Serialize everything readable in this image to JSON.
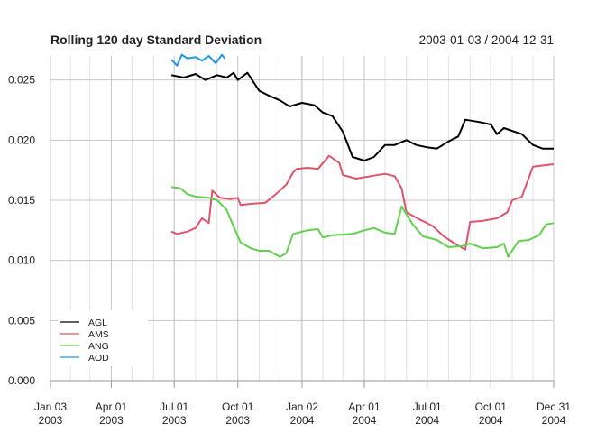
{
  "chart_data": {
    "type": "line",
    "title": "Rolling 120 day Standard Deviation",
    "date_range": "2003-01-03 / 2004-12-31",
    "x_range": [
      "2003-01-03",
      "2004-12-31"
    ],
    "ylim": [
      0,
      0.027
    ],
    "y_ticks": [
      "0.000",
      "0.005",
      "0.010",
      "0.015",
      "0.020",
      "0.025"
    ],
    "y_tick_values": [
      0,
      0.005,
      0.01,
      0.015,
      0.02,
      0.025
    ],
    "x_ticks": [
      {
        "date": "2003-01-03",
        "line1": "Jan 03",
        "line2": "2003"
      },
      {
        "date": "2003-04-01",
        "line1": "Apr 01",
        "line2": "2003"
      },
      {
        "date": "2003-07-01",
        "line1": "Jul 01",
        "line2": "2003"
      },
      {
        "date": "2003-10-01",
        "line1": "Oct 01",
        "line2": "2003"
      },
      {
        "date": "2004-01-02",
        "line1": "Jan 02",
        "line2": "2004"
      },
      {
        "date": "2004-04-01",
        "line1": "Apr 01",
        "line2": "2004"
      },
      {
        "date": "2004-07-01",
        "line1": "Jul 01",
        "line2": "2004"
      },
      {
        "date": "2004-10-01",
        "line1": "Oct 01",
        "line2": "2004"
      },
      {
        "date": "2004-12-31",
        "line1": "Dec 31",
        "line2": "2004"
      }
    ],
    "grid": true,
    "legend_position": "bottom-left",
    "series": [
      {
        "name": "AGL",
        "color": "#000000",
        "points": [
          [
            "2003-06-27",
            0.0254
          ],
          [
            "2003-07-15",
            0.0252
          ],
          [
            "2003-08-01",
            0.0255
          ],
          [
            "2003-08-15",
            0.025
          ],
          [
            "2003-09-01",
            0.0254
          ],
          [
            "2003-09-15",
            0.0252
          ],
          [
            "2003-09-25",
            0.0256
          ],
          [
            "2003-10-01",
            0.025
          ],
          [
            "2003-10-15",
            0.0256
          ],
          [
            "2003-11-01",
            0.0241
          ],
          [
            "2003-11-15",
            0.0237
          ],
          [
            "2003-12-01",
            0.0233
          ],
          [
            "2003-12-15",
            0.0228
          ],
          [
            "2004-01-02",
            0.0231
          ],
          [
            "2004-01-20",
            0.0229
          ],
          [
            "2004-02-01",
            0.0223
          ],
          [
            "2004-02-15",
            0.022
          ],
          [
            "2004-03-01",
            0.0207
          ],
          [
            "2004-03-15",
            0.0186
          ],
          [
            "2004-04-01",
            0.0183
          ],
          [
            "2004-04-15",
            0.0186
          ],
          [
            "2004-05-01",
            0.0196
          ],
          [
            "2004-05-15",
            0.0196
          ],
          [
            "2004-06-01",
            0.02
          ],
          [
            "2004-06-15",
            0.0196
          ],
          [
            "2004-07-01",
            0.0194
          ],
          [
            "2004-07-15",
            0.0193
          ],
          [
            "2004-08-01",
            0.0199
          ],
          [
            "2004-08-15",
            0.0203
          ],
          [
            "2004-08-25",
            0.0217
          ],
          [
            "2004-09-15",
            0.0215
          ],
          [
            "2004-10-01",
            0.0213
          ],
          [
            "2004-10-10",
            0.0205
          ],
          [
            "2004-10-20",
            0.021
          ],
          [
            "2004-11-15",
            0.0205
          ],
          [
            "2004-12-01",
            0.0196
          ],
          [
            "2004-12-15",
            0.0193
          ],
          [
            "2004-12-31",
            0.0193
          ]
        ]
      },
      {
        "name": "AMS",
        "color": "#df536b",
        "points": [
          [
            "2003-06-27",
            0.0124
          ],
          [
            "2003-07-05",
            0.0122
          ],
          [
            "2003-07-20",
            0.0124
          ],
          [
            "2003-08-01",
            0.0127
          ],
          [
            "2003-08-10",
            0.0135
          ],
          [
            "2003-08-20",
            0.0131
          ],
          [
            "2003-08-25",
            0.0158
          ],
          [
            "2003-09-05",
            0.0152
          ],
          [
            "2003-09-20",
            0.0151
          ],
          [
            "2003-10-01",
            0.0152
          ],
          [
            "2003-10-05",
            0.0146
          ],
          [
            "2003-10-20",
            0.0147
          ],
          [
            "2003-11-10",
            0.0148
          ],
          [
            "2003-11-25",
            0.0155
          ],
          [
            "2003-12-10",
            0.0163
          ],
          [
            "2003-12-20",
            0.0173
          ],
          [
            "2003-12-25",
            0.0176
          ],
          [
            "2004-01-10",
            0.0177
          ],
          [
            "2004-01-25",
            0.0176
          ],
          [
            "2004-02-10",
            0.0187
          ],
          [
            "2004-02-25",
            0.0181
          ],
          [
            "2004-03-01",
            0.0171
          ],
          [
            "2004-03-20",
            0.0168
          ],
          [
            "2004-04-10",
            0.017
          ],
          [
            "2004-05-01",
            0.0172
          ],
          [
            "2004-05-15",
            0.017
          ],
          [
            "2004-05-25",
            0.016
          ],
          [
            "2004-06-01",
            0.014
          ],
          [
            "2004-06-20",
            0.0134
          ],
          [
            "2004-07-01",
            0.0131
          ],
          [
            "2004-07-10",
            0.0128
          ],
          [
            "2004-07-25",
            0.012
          ],
          [
            "2004-08-10",
            0.0114
          ],
          [
            "2004-08-25",
            0.0109
          ],
          [
            "2004-09-01",
            0.0132
          ],
          [
            "2004-09-20",
            0.0133
          ],
          [
            "2004-10-10",
            0.0135
          ],
          [
            "2004-10-25",
            0.014
          ],
          [
            "2004-11-01",
            0.015
          ],
          [
            "2004-11-15",
            0.0153
          ],
          [
            "2004-12-01",
            0.0178
          ],
          [
            "2004-12-31",
            0.018
          ]
        ]
      },
      {
        "name": "ANG",
        "color": "#61d04f",
        "points": [
          [
            "2003-06-27",
            0.0161
          ],
          [
            "2003-07-10",
            0.016
          ],
          [
            "2003-07-20",
            0.0155
          ],
          [
            "2003-08-01",
            0.0153
          ],
          [
            "2003-08-20",
            0.0152
          ],
          [
            "2003-09-01",
            0.015
          ],
          [
            "2003-09-15",
            0.0142
          ],
          [
            "2003-09-25",
            0.0128
          ],
          [
            "2003-10-05",
            0.0115
          ],
          [
            "2003-10-20",
            0.011
          ],
          [
            "2003-11-01",
            0.0108
          ],
          [
            "2003-11-15",
            0.0108
          ],
          [
            "2003-12-01",
            0.0103
          ],
          [
            "2003-12-10",
            0.0106
          ],
          [
            "2003-12-20",
            0.0122
          ],
          [
            "2004-01-10",
            0.0125
          ],
          [
            "2004-01-25",
            0.0126
          ],
          [
            "2004-02-01",
            0.0119
          ],
          [
            "2004-02-15",
            0.0121
          ],
          [
            "2004-03-15",
            0.0122
          ],
          [
            "2004-04-01",
            0.0125
          ],
          [
            "2004-04-15",
            0.0127
          ],
          [
            "2004-05-01",
            0.0123
          ],
          [
            "2004-05-15",
            0.0122
          ],
          [
            "2004-05-25",
            0.0145
          ],
          [
            "2004-06-10",
            0.013
          ],
          [
            "2004-06-25",
            0.012
          ],
          [
            "2004-07-15",
            0.0117
          ],
          [
            "2004-08-01",
            0.0111
          ],
          [
            "2004-08-20",
            0.0112
          ],
          [
            "2004-09-01",
            0.0114
          ],
          [
            "2004-09-20",
            0.011
          ],
          [
            "2004-10-10",
            0.0111
          ],
          [
            "2004-10-20",
            0.0114
          ],
          [
            "2004-10-26",
            0.0103
          ],
          [
            "2004-11-10",
            0.0116
          ],
          [
            "2004-11-25",
            0.0117
          ],
          [
            "2004-12-10",
            0.0121
          ],
          [
            "2004-12-20",
            0.013
          ],
          [
            "2004-12-31",
            0.0131
          ]
        ]
      },
      {
        "name": "AOD",
        "color": "#2297e6",
        "points": [
          [
            "2003-06-27",
            0.0267
          ],
          [
            "2003-07-05",
            0.0262
          ],
          [
            "2003-07-12",
            0.0271
          ],
          [
            "2003-07-20",
            0.0268
          ],
          [
            "2003-08-01",
            0.0269
          ],
          [
            "2003-08-10",
            0.0266
          ],
          [
            "2003-08-20",
            0.027
          ],
          [
            "2003-08-30",
            0.0264
          ],
          [
            "2003-09-08",
            0.0271
          ],
          [
            "2003-09-12",
            0.0268
          ]
        ]
      }
    ]
  }
}
